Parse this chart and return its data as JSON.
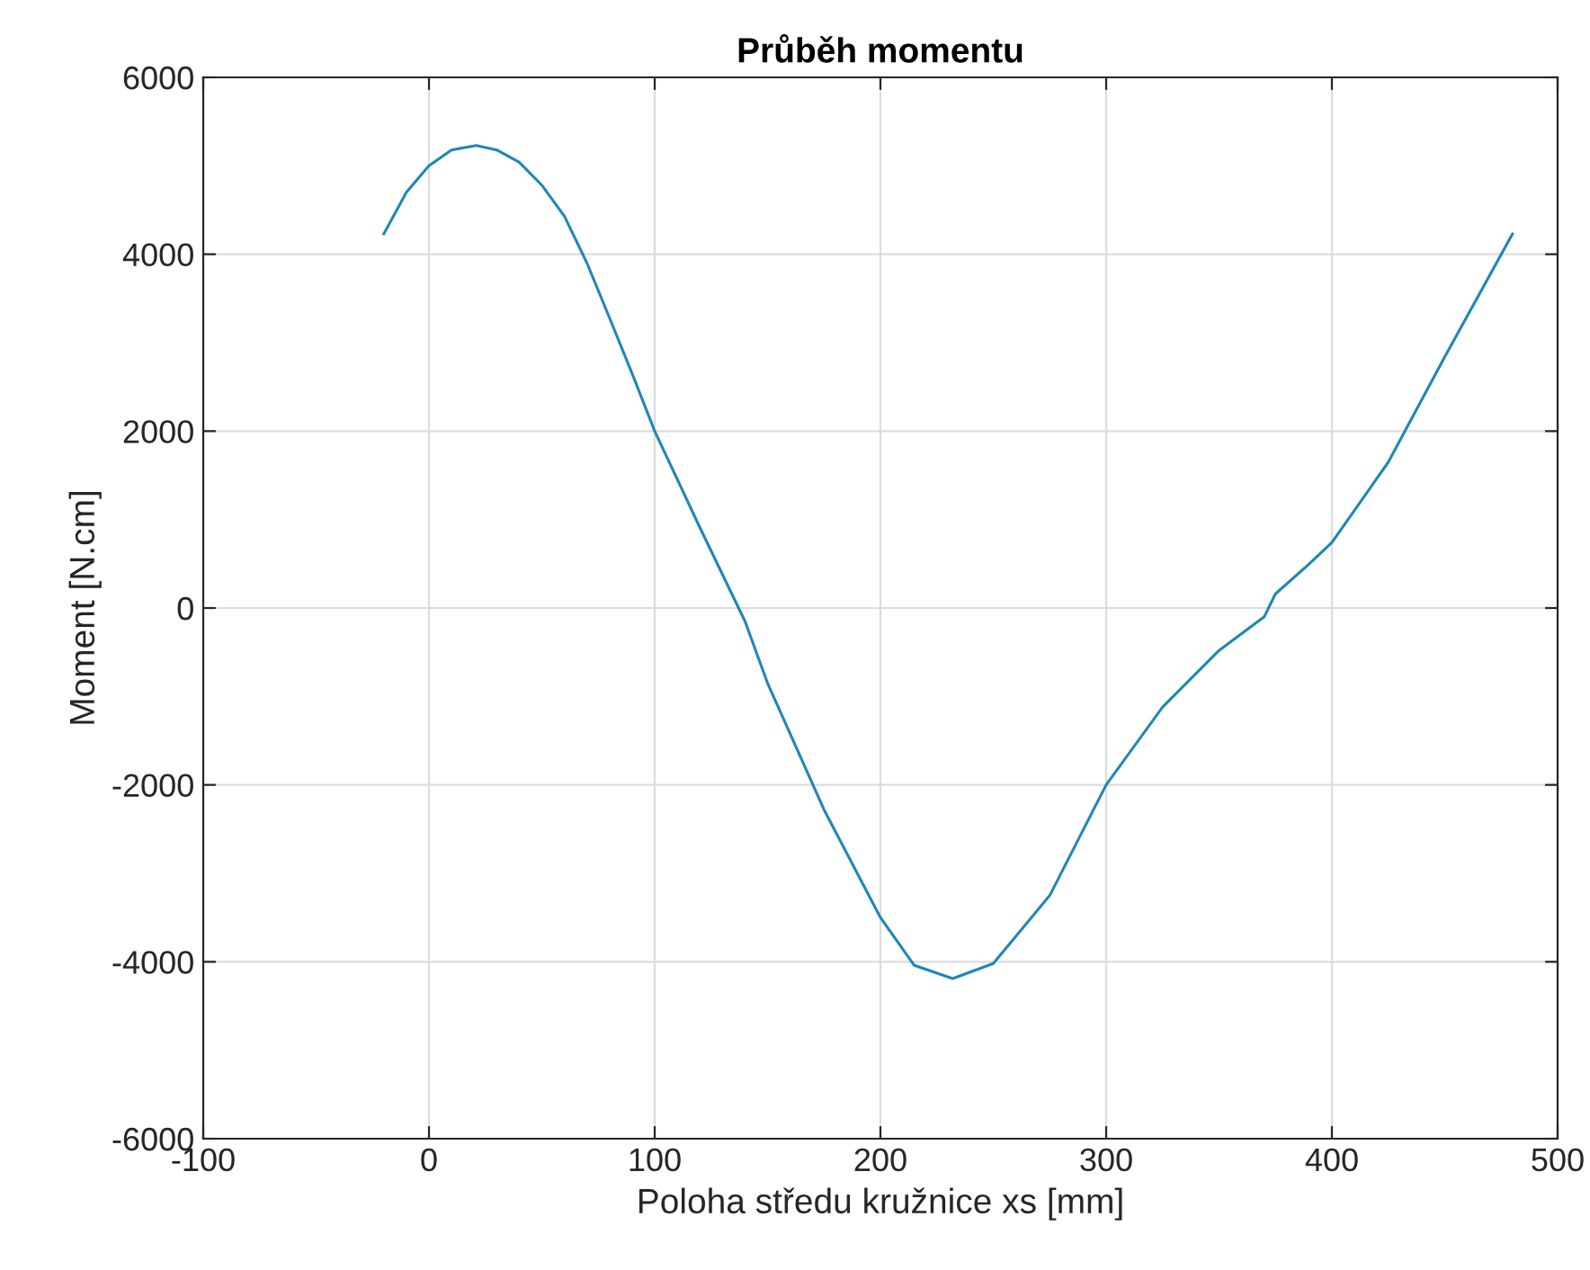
{
  "chart_data": {
    "type": "line",
    "title": "Průběh momentu",
    "xlabel": "Poloha středu kružnice xs [mm]",
    "ylabel": "Moment [N.cm]",
    "xlim": [
      -100,
      500
    ],
    "xticks": [
      -100,
      0,
      100,
      200,
      300,
      400,
      500
    ],
    "ylim": [
      -6000,
      6000
    ],
    "yticks": [
      -6000,
      -4000,
      -2000,
      0,
      2000,
      4000,
      6000
    ],
    "grid": true,
    "series": [
      {
        "color": "#1f86b8",
        "x": [
          -20,
          -10,
          0,
          10,
          21,
          30,
          40,
          50,
          60,
          70,
          80,
          90,
          100,
          120,
          140,
          150,
          175,
          200,
          215,
          232,
          250,
          275,
          300,
          325,
          350,
          370,
          375,
          390,
          400,
          425,
          450,
          480
        ],
        "values": [
          4230,
          4700,
          5000,
          5180,
          5230,
          5180,
          5040,
          4780,
          4430,
          3900,
          3280,
          2650,
          2000,
          910,
          -150,
          -850,
          -2280,
          -3500,
          -4040,
          -4190,
          -4020,
          -3250,
          -2000,
          -1120,
          -480,
          -100,
          160,
          500,
          740,
          1650,
          2840,
          4230
        ]
      }
    ]
  }
}
